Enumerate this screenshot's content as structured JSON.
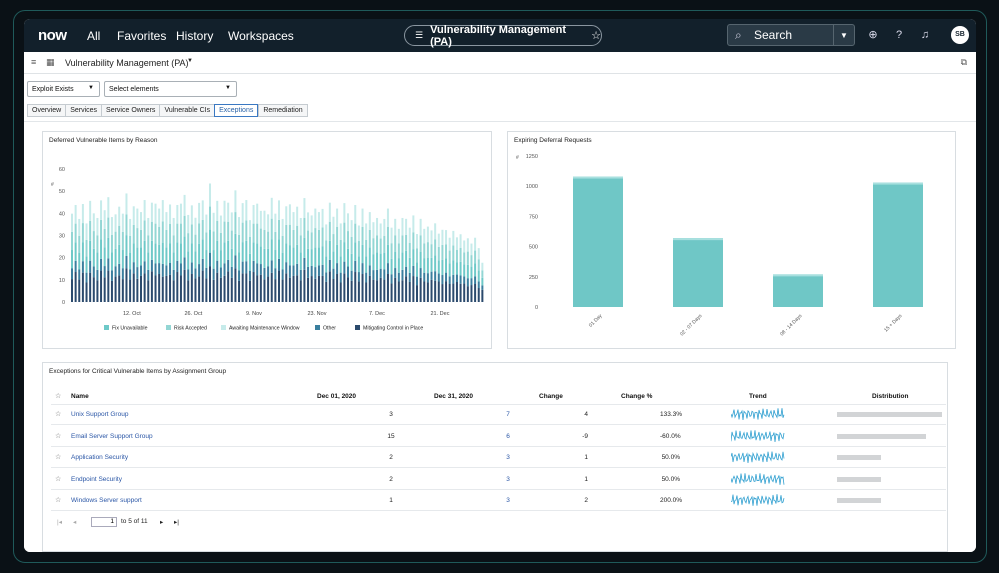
{
  "topnav": {
    "logo": "now",
    "links": [
      "All",
      "Favorites",
      "History",
      "Workspaces"
    ],
    "app_title": "Vulnerability Management (PA)",
    "search_label": "Search",
    "avatar_initials": "SB"
  },
  "subheader": {
    "title": "Vulnerability Management (PA)"
  },
  "filters": {
    "primary": "Exploit Exists",
    "secondary": "Select elements"
  },
  "tabs": [
    "Overview",
    "Services",
    "Service Owners",
    "Vulnerable CIs",
    "Exceptions",
    "Remediation"
  ],
  "active_tab": "Exceptions",
  "deferred_card": {
    "title": "Deferred Vulnerable Items by Reason",
    "y_label": "#"
  },
  "expiring_card": {
    "title": "Expiring Deferral Requests",
    "y_label": "#"
  },
  "table_card": {
    "title": "Exceptions for Critical Vulnerable Items by Assignment Group",
    "columns": [
      "Name",
      "Dec 01, 2020",
      "Dec 31, 2020",
      "Change",
      "Change %",
      "Trend",
      "Distribution"
    ],
    "rows": [
      {
        "name": "Unix Support Group",
        "dec01": "3",
        "dec31": "7",
        "change": "4",
        "change_pct": "133.3%",
        "distribution": 1.0
      },
      {
        "name": "Email Server Support Group",
        "dec01": "15",
        "dec31": "6",
        "change": "-9",
        "change_pct": "-60.0%",
        "distribution": 0.85
      },
      {
        "name": "Application Security",
        "dec01": "2",
        "dec31": "3",
        "change": "1",
        "change_pct": "50.0%",
        "distribution": 0.42
      },
      {
        "name": "Endpoint Security",
        "dec01": "2",
        "dec31": "3",
        "change": "1",
        "change_pct": "50.0%",
        "distribution": 0.42
      },
      {
        "name": "Windows Server support",
        "dec01": "1",
        "dec31": "3",
        "change": "2",
        "change_pct": "200.0%",
        "distribution": 0.42
      }
    ],
    "pager": {
      "page": "1",
      "text": "to 5 of 11"
    }
  },
  "colors": {
    "nav_bg": "#12202b",
    "teal": "#6fc7c6",
    "fix_unavailable": "#6ec9c8",
    "risk_accepted": "#93d6d4",
    "awaiting_window": "#c6ebea",
    "other": "#3a7f9e",
    "mitigating": "#2b4a6d",
    "link": "#2a56a6"
  },
  "chart_data": [
    {
      "type": "bar",
      "stacked": true,
      "title": "Deferred Vulnerable Items by Reason",
      "ylabel": "#",
      "ylim": [
        0,
        60
      ],
      "yticks": [
        0,
        10,
        20,
        30,
        40,
        50,
        60
      ],
      "x_tick_labels": [
        "12. Oct",
        "26. Oct",
        "9. Nov",
        "23. Nov",
        "7. Dec",
        "21. Dec"
      ],
      "legend_position": "bottom",
      "legend": [
        "Fix Unavailable",
        "Risk Accepted",
        "Awaiting Maintenance Window",
        "Other",
        "Mitigating Control in Place"
      ],
      "totals": [
        41,
        42,
        38,
        43,
        37,
        45,
        40,
        39,
        44,
        42,
        46,
        40,
        39,
        43,
        41,
        47,
        38,
        42,
        44,
        40,
        46,
        39,
        43,
        45,
        41,
        48,
        40,
        44,
        39,
        42,
        45,
        47,
        41,
        43,
        38,
        46,
        44,
        40,
        52,
        42,
        45,
        39,
        47,
        43,
        41,
        49,
        40,
        44,
        46,
        38,
        42,
        45,
        40,
        43,
        39,
        47,
        41,
        44,
        38,
        42,
        46,
        40,
        43,
        39,
        45,
        41,
        38,
        44,
        40,
        42,
        36,
        43,
        39,
        41,
        37,
        44,
        40,
        38,
        42,
        35,
        41,
        37,
        40,
        36,
        39,
        34,
        38,
        41,
        35,
        37,
        33,
        39,
        36,
        34,
        38,
        32,
        37,
        33,
        35,
        31,
        36,
        30,
        34,
        32,
        29,
        33,
        28,
        31,
        27,
        30,
        26,
        29,
        25,
        17
      ],
      "series_fractions": {
        "Mitigating Control in Place": 0.28,
        "Other": 0.12,
        "Fix Unavailable": 0.2,
        "Risk Accepted": 0.2,
        "Awaiting Maintenance Window": 0.2
      }
    },
    {
      "type": "bar",
      "title": "Expiring Deferral Requests",
      "ylabel": "#",
      "categories": [
        "01 Day",
        "02 - 07 Days",
        "08 - 14 Days",
        "15 + Days"
      ],
      "values": [
        1080,
        570,
        270,
        1030
      ],
      "ylim": [
        0,
        1250
      ],
      "yticks": [
        0,
        250,
        500,
        750,
        1000,
        1250
      ]
    }
  ]
}
